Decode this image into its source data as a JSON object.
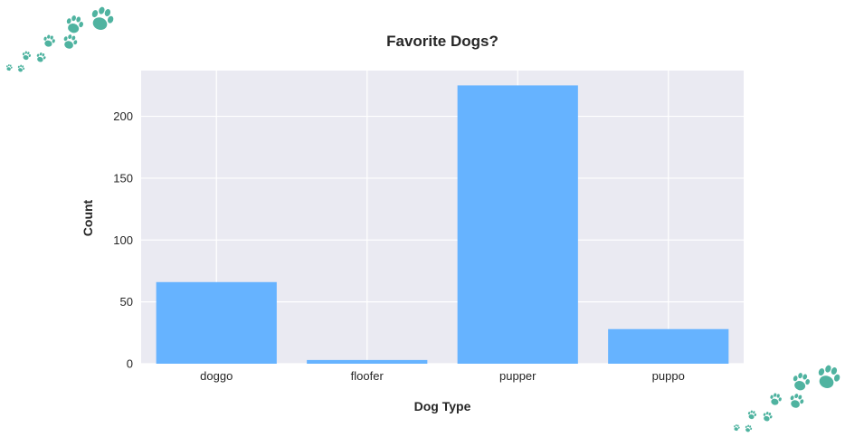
{
  "colors": {
    "bar": "#66b3ff",
    "plot_bg": "#eaeaf2",
    "grid": "#ffffff",
    "paw": "#4fb3a0"
  },
  "decorations": {
    "top_left": "paw-print-trail-icon",
    "bottom_right": "paw-print-trail-icon"
  },
  "chart_data": {
    "type": "bar",
    "title": "Favorite Dogs?",
    "xlabel": "Dog Type",
    "ylabel": "Count",
    "categories": [
      "doggo",
      "floofer",
      "pupper",
      "puppo"
    ],
    "values": [
      66,
      3,
      225,
      28
    ],
    "ylim": [
      0,
      237
    ],
    "yticks": [
      0,
      50,
      100,
      150,
      200
    ],
    "grid": true,
    "legend": "none"
  }
}
